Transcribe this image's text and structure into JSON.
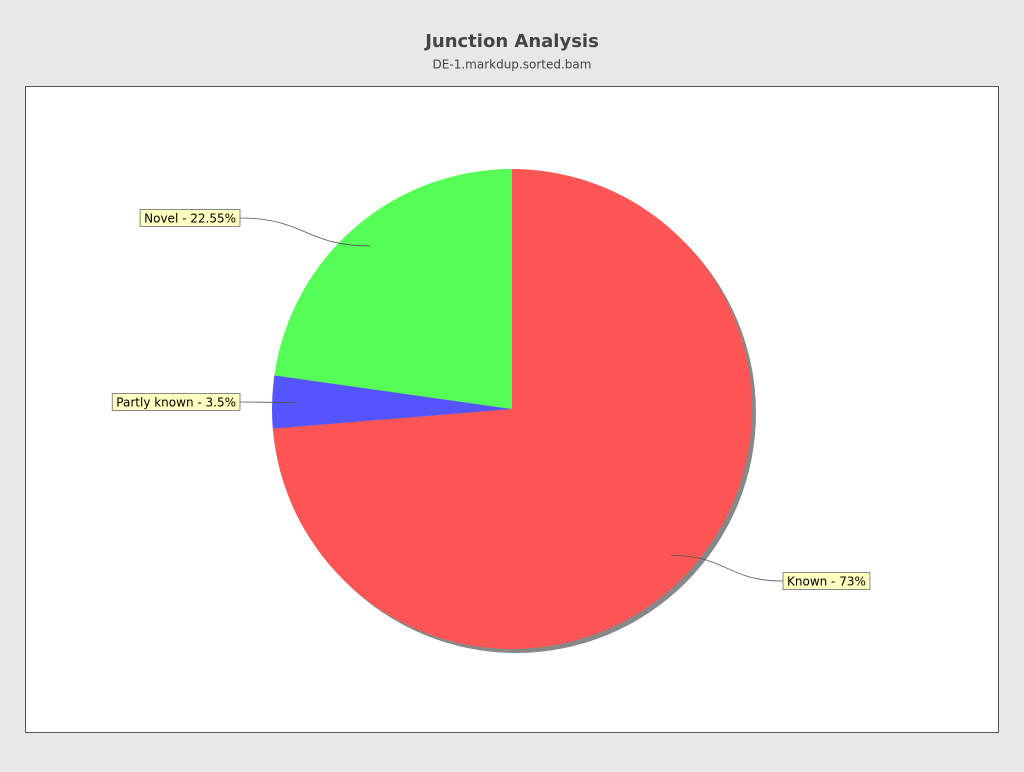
{
  "chart_data": {
    "type": "pie",
    "title": "Junction Analysis",
    "subtitle": "DE-1.markdup.sorted.bam",
    "values": [
      73,
      3.5,
      22.55
    ],
    "value_labels": [
      "Known - 73%",
      "Partly known - 3.5%",
      "Novel - 22.55%"
    ],
    "colors": [
      "#ff5555",
      "#5555ff",
      "#55ff55"
    ]
  }
}
